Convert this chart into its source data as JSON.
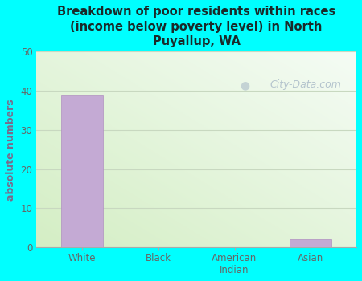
{
  "categories": [
    "White",
    "Black",
    "American\nIndian",
    "Asian"
  ],
  "values": [
    39,
    0,
    0,
    2
  ],
  "bar_color": "#c4aad4",
  "bar_edgecolor": "#b090c0",
  "title": "Breakdown of poor residents within races\n(income below poverty level) in North\nPuyallup, WA",
  "ylabel": "absolute numbers",
  "ylim": [
    0,
    50
  ],
  "yticks": [
    0,
    10,
    20,
    30,
    40,
    50
  ],
  "background_color": "#00ffff",
  "plot_bg_left": "#d4eec4",
  "plot_bg_right": "#f5fcf5",
  "title_color": "#1a2a2a",
  "axis_label_color": "#7a6a8a",
  "tick_color": "#666666",
  "grid_color": "#c8d8c0",
  "watermark": "City-Data.com",
  "watermark_color": "#aabbc8"
}
